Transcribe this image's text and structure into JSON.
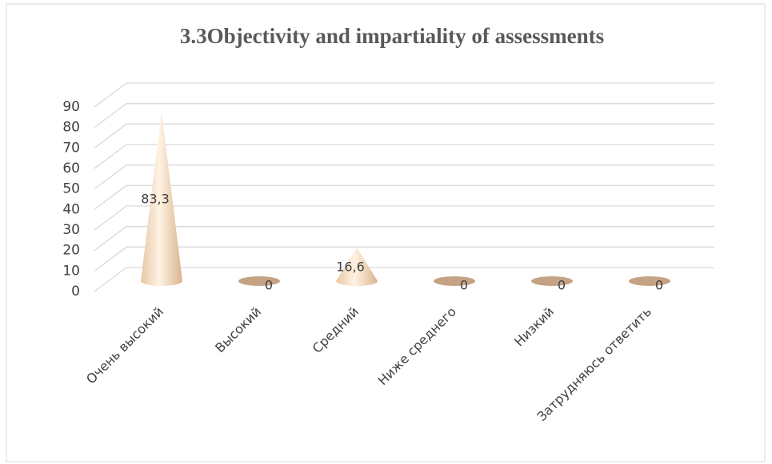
{
  "chart_data": {
    "type": "cone",
    "title": "3.3Objectivity and impartiality of assessments",
    "categories": [
      "Очень высокий",
      "Высокий",
      "Средний",
      "Ниже среднего",
      "Низкий",
      "Затрудняюсь ответить"
    ],
    "values": [
      83.3,
      0,
      16.6,
      0,
      0,
      0
    ],
    "value_labels": [
      "83,3",
      "0",
      "16,6",
      "0",
      "0",
      "0"
    ],
    "ylim": [
      0,
      90
    ],
    "yticks": [
      0,
      10,
      20,
      30,
      40,
      50,
      60,
      70,
      80,
      90
    ],
    "grid": true,
    "color": "#f2d6b8"
  }
}
